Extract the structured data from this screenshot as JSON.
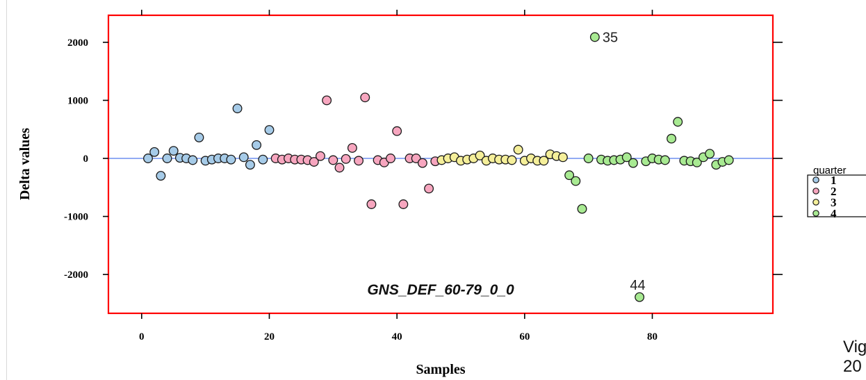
{
  "chart_data": {
    "type": "scatter",
    "title": "",
    "panel_label": "GNS_DEF_60-79_0_0",
    "xlabel": "Samples",
    "ylabel": "Delta values",
    "xlim": [
      -5,
      97
    ],
    "ylim": [
      -2700,
      2450
    ],
    "x_ticks": [
      0,
      20,
      40,
      60,
      80
    ],
    "y_ticks": [
      -2000,
      -1000,
      0,
      1000,
      2000
    ],
    "reference_line": 0,
    "grid": false,
    "legend": {
      "title": "quarter",
      "position": "right",
      "entries": [
        {
          "label": "1",
          "color": "#a6cbe8"
        },
        {
          "label": "2",
          "color": "#f7a6bf"
        },
        {
          "label": "3",
          "color": "#f5ef9a"
        },
        {
          "label": "4",
          "color": "#a8ea92"
        }
      ]
    },
    "colors": {
      "frame": "#ff0000",
      "reference_line": "#6e8ff0",
      "marker_edge": "#1a1a1a"
    },
    "series": [
      {
        "name": "1",
        "color": "#a6cbe8",
        "points": [
          [
            1,
            0
          ],
          [
            2,
            110
          ],
          [
            3,
            -300
          ],
          [
            4,
            0
          ],
          [
            5,
            130
          ],
          [
            6,
            10
          ],
          [
            7,
            0
          ],
          [
            8,
            -30
          ],
          [
            9,
            360
          ],
          [
            10,
            -40
          ],
          [
            11,
            -20
          ],
          [
            12,
            0
          ],
          [
            13,
            0
          ],
          [
            14,
            -20
          ],
          [
            15,
            860
          ],
          [
            16,
            20
          ],
          [
            17,
            -110
          ],
          [
            18,
            230
          ],
          [
            19,
            -20
          ],
          [
            20,
            490
          ]
        ]
      },
      {
        "name": "2",
        "color": "#f7a6bf",
        "points": [
          [
            21,
            0
          ],
          [
            22,
            -20
          ],
          [
            23,
            0
          ],
          [
            24,
            -20
          ],
          [
            25,
            -20
          ],
          [
            26,
            -30
          ],
          [
            27,
            -60
          ],
          [
            28,
            40
          ],
          [
            29,
            1000
          ],
          [
            30,
            -30
          ],
          [
            31,
            -160
          ],
          [
            32,
            -10
          ],
          [
            33,
            180
          ],
          [
            34,
            -40
          ],
          [
            35,
            1050
          ],
          [
            36,
            -790
          ],
          [
            37,
            -30
          ],
          [
            38,
            -70
          ],
          [
            39,
            0
          ],
          [
            40,
            470
          ],
          [
            41,
            -790
          ],
          [
            42,
            0
          ],
          [
            43,
            0
          ],
          [
            44,
            -80
          ],
          [
            45,
            -520
          ],
          [
            46,
            -50
          ]
        ]
      },
      {
        "name": "3",
        "color": "#f5ef9a",
        "points": [
          [
            47,
            -30
          ],
          [
            48,
            0
          ],
          [
            49,
            20
          ],
          [
            50,
            -40
          ],
          [
            51,
            -20
          ],
          [
            52,
            0
          ],
          [
            53,
            50
          ],
          [
            54,
            -40
          ],
          [
            55,
            0
          ],
          [
            56,
            -20
          ],
          [
            57,
            -20
          ],
          [
            58,
            -30
          ],
          [
            59,
            150
          ],
          [
            60,
            -40
          ],
          [
            61,
            0
          ],
          [
            62,
            -40
          ],
          [
            63,
            -40
          ],
          [
            64,
            70
          ],
          [
            65,
            40
          ],
          [
            66,
            20
          ]
        ]
      },
      {
        "name": "4",
        "color": "#a8ea92",
        "points": [
          [
            67,
            -290
          ],
          [
            68,
            -390
          ],
          [
            69,
            -870
          ],
          [
            70,
            0
          ],
          [
            71,
            2090
          ],
          [
            72,
            -20
          ],
          [
            73,
            -40
          ],
          [
            74,
            -30
          ],
          [
            75,
            -20
          ],
          [
            76,
            20
          ],
          [
            77,
            -80
          ],
          [
            78,
            -2390
          ],
          [
            79,
            -50
          ],
          [
            80,
            0
          ],
          [
            81,
            -20
          ],
          [
            82,
            -30
          ],
          [
            83,
            340
          ],
          [
            84,
            630
          ],
          [
            85,
            -40
          ],
          [
            86,
            -50
          ],
          [
            87,
            -70
          ],
          [
            88,
            20
          ],
          [
            89,
            80
          ],
          [
            90,
            -110
          ],
          [
            91,
            -60
          ],
          [
            92,
            -30
          ]
        ]
      }
    ],
    "annotations": [
      {
        "text": "35",
        "x": 72.2,
        "y": 2090
      },
      {
        "text": "44",
        "x": 76.5,
        "y": -2180
      }
    ]
  },
  "side_text": {
    "line1": "Vig",
    "line2": "20"
  }
}
